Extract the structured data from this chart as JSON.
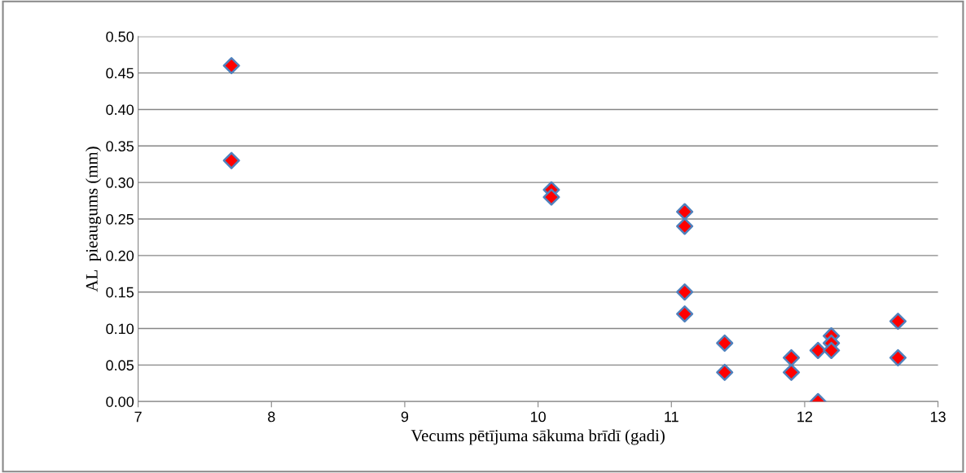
{
  "chart_data": {
    "type": "scatter",
    "xlabel": "Vecums pētījuma sākuma brīdī (gadi)",
    "ylabel": "AL  pieaugums (mm)",
    "x": [
      7.7,
      7.7,
      10.1,
      10.1,
      11.1,
      11.1,
      11.1,
      11.1,
      11.4,
      11.4,
      11.9,
      11.9,
      12.1,
      12.1,
      12.2,
      12.2,
      12.2,
      12.7,
      12.7
    ],
    "series": [
      {
        "color": "#ff0000",
        "values": [
          0.46,
          0.33,
          0.29,
          0.28,
          0.26,
          0.24,
          0.15,
          0.12,
          0.08,
          0.04,
          0.06,
          0.04,
          0.07,
          0.0,
          0.09,
          0.08,
          0.07,
          0.11,
          0.06
        ]
      }
    ],
    "xlim": [
      7,
      13
    ],
    "xticks": [
      7,
      8,
      9,
      10,
      11,
      12,
      13
    ],
    "ylim": [
      0,
      0.5
    ],
    "yticks": [
      {
        "value": 0,
        "label": "0.00"
      },
      {
        "value": 0.05,
        "label": "0.05"
      },
      {
        "value": 0.1,
        "label": "0.10"
      },
      {
        "value": 0.15,
        "label": "0.15"
      },
      {
        "value": 0.2,
        "label": "0.20"
      },
      {
        "value": 0.25,
        "label": "0.25"
      },
      {
        "value": 0.3,
        "label": "0.30"
      },
      {
        "value": 0.35,
        "label": "0.35"
      },
      {
        "value": 0.4,
        "label": "0.40"
      },
      {
        "value": 0.45,
        "label": "0.45"
      },
      {
        "value": 0.5,
        "label": "0.50"
      }
    ],
    "grid": "y",
    "marker": "diamond",
    "legend": false
  }
}
